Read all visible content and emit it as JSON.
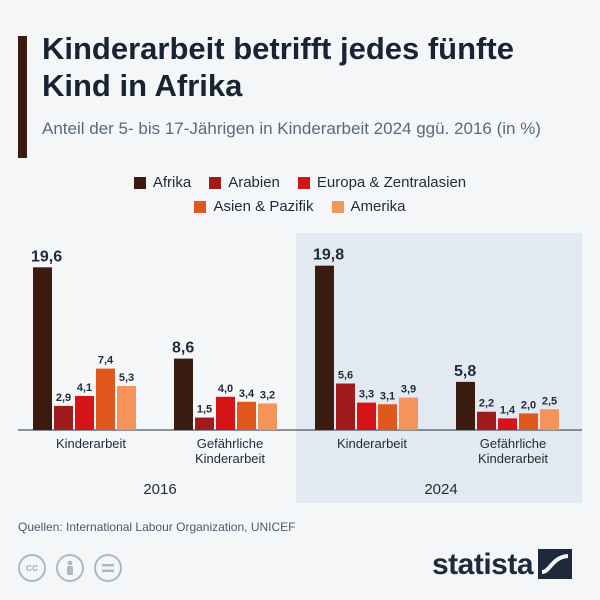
{
  "header": {
    "title": "Kinderarbeit betrifft jedes fünfte Kind in Afrika",
    "subtitle": "Anteil der 5- bis 17-Jährigen in Kinderarbeit 2024 ggü. 2016 (in %)"
  },
  "legend": [
    {
      "label": "Afrika",
      "color": "#3b1a0f"
    },
    {
      "label": "Arabien",
      "color": "#a01b1b"
    },
    {
      "label": "Europa & Zentralasien",
      "color": "#d61418"
    },
    {
      "label": "Asien & Pazifik",
      "color": "#e0581c"
    },
    {
      "label": "Amerika",
      "color": "#f4935a"
    }
  ],
  "chart_data": {
    "type": "bar",
    "ylim": [
      0,
      20
    ],
    "groups": [
      {
        "year": "2016",
        "categories": [
          "Kinderarbeit",
          "Gefährliche Kinderarbeit"
        ]
      },
      {
        "year": "2024",
        "categories": [
          "Kinderarbeit",
          "Gefährliche Kinderarbeit"
        ]
      }
    ],
    "series": [
      {
        "name": "Afrika",
        "values": [
          19.6,
          8.6,
          19.8,
          5.8
        ]
      },
      {
        "name": "Arabien",
        "values": [
          2.9,
          1.5,
          5.6,
          2.2
        ]
      },
      {
        "name": "Europa & Zentralasien",
        "values": [
          4.1,
          4.0,
          3.3,
          1.4
        ]
      },
      {
        "name": "Asien & Pazifik",
        "values": [
          7.4,
          3.4,
          3.1,
          2.0
        ]
      },
      {
        "name": "Amerika",
        "values": [
          5.3,
          3.2,
          3.9,
          2.5
        ]
      }
    ],
    "value_labels": [
      [
        "19,6",
        "8,6",
        "19,8",
        "5,8"
      ],
      [
        "2,9",
        "1,5",
        "5,6",
        "2,2"
      ],
      [
        "4,1",
        "4,0",
        "3,3",
        "1,4"
      ],
      [
        "7,4",
        "3,4",
        "3,1",
        "2,0"
      ],
      [
        "5,3",
        "3,2",
        "3,9",
        "2,5"
      ]
    ],
    "category_labels": [
      "Kinderarbeit",
      "Gefährliche Kinderarbeit",
      "Kinderarbeit",
      "Gefährliche Kinderarbeit"
    ],
    "year_labels": [
      "2016",
      "2024"
    ]
  },
  "footer": {
    "source": "Quellen: International Labour Organization, UNICEF",
    "brand": "statista",
    "license_icons": [
      "cc-icon",
      "person-icon",
      "equals-icon"
    ]
  }
}
